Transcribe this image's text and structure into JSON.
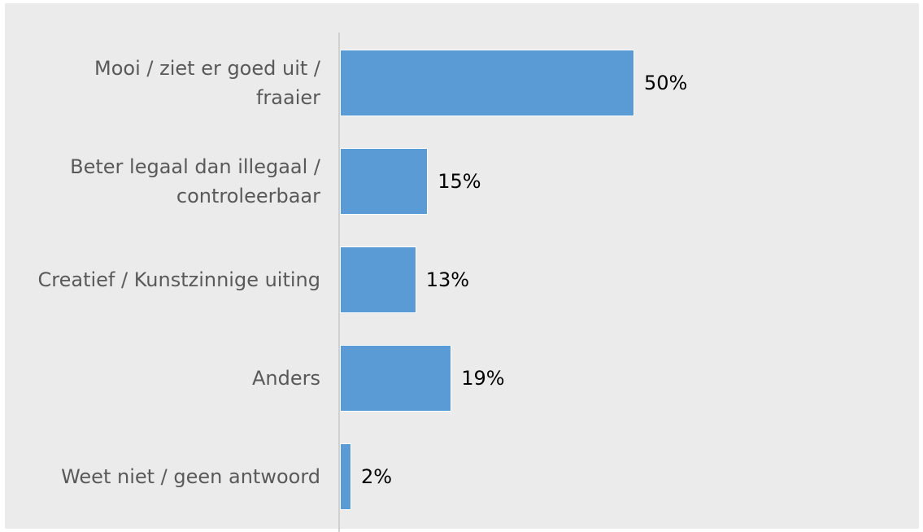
{
  "chart_data": {
    "type": "barh",
    "categories": [
      "Mooi / ziet er goed uit / fraaier",
      "Beter legaal dan illegaal / controleerbaar",
      "Creatief / Kunstzinnige uiting",
      "Anders",
      "Weet niet / geen antwoord"
    ],
    "values": [
      50,
      15,
      13,
      19,
      2
    ],
    "value_labels": [
      "50%",
      "15%",
      "13%",
      "19%",
      "2%"
    ],
    "color": "#5b9bd5"
  }
}
